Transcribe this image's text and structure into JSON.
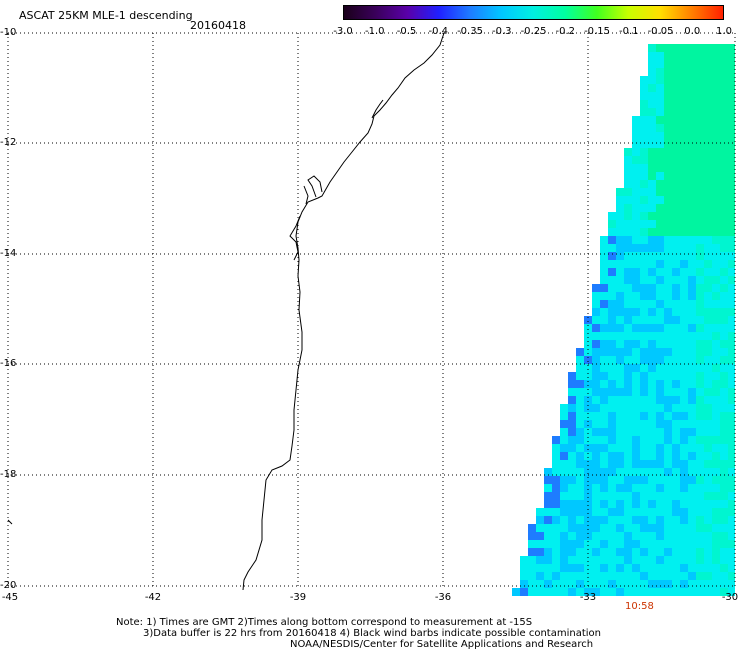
{
  "header": {
    "title": "ASCAT 25KM MLE-1 descending",
    "date": "20160418"
  },
  "colorbar": {
    "labels": [
      "-3.0",
      "-1.0",
      "-0.5",
      "-0.4",
      "-0.35",
      "-0.3",
      "-0.25",
      "-0.2",
      "-0.15",
      "-0.1",
      "-0.05",
      "0.0",
      "1.0"
    ],
    "colors": [
      "#1a001a",
      "#3a005a",
      "#5a00a8",
      "#2020ff",
      "#1e7cff",
      "#00c8ff",
      "#00f0e0",
      "#00ffa0",
      "#40ff20",
      "#c8ff00",
      "#ffe000",
      "#ff8000",
      "#ff2000"
    ]
  },
  "map": {
    "lat_labels": [
      "-10",
      "-12",
      "-14",
      "-16",
      "-18",
      "-20"
    ],
    "lon_labels": [
      "-45",
      "-42",
      "-39",
      "-36",
      "-33",
      "-30"
    ],
    "pass_time": "10:58",
    "field_colors": {
      "blue": "#1e7cff",
      "cyan_blue": "#00c8ff",
      "cyan": "#00f0f0",
      "aqua": "#00f5d0",
      "green": "#00f5a0"
    }
  },
  "footer": {
    "note1": "Note: 1) Times are GMT 2)Times along bottom correspond to measurement at -15S",
    "note2": "3)Data buffer is 22 hrs from 20160418 4) Black wind barbs indicate possible contamination",
    "credit": "NOAA/NESDIS/Center for Satellite Applications and Research"
  }
}
